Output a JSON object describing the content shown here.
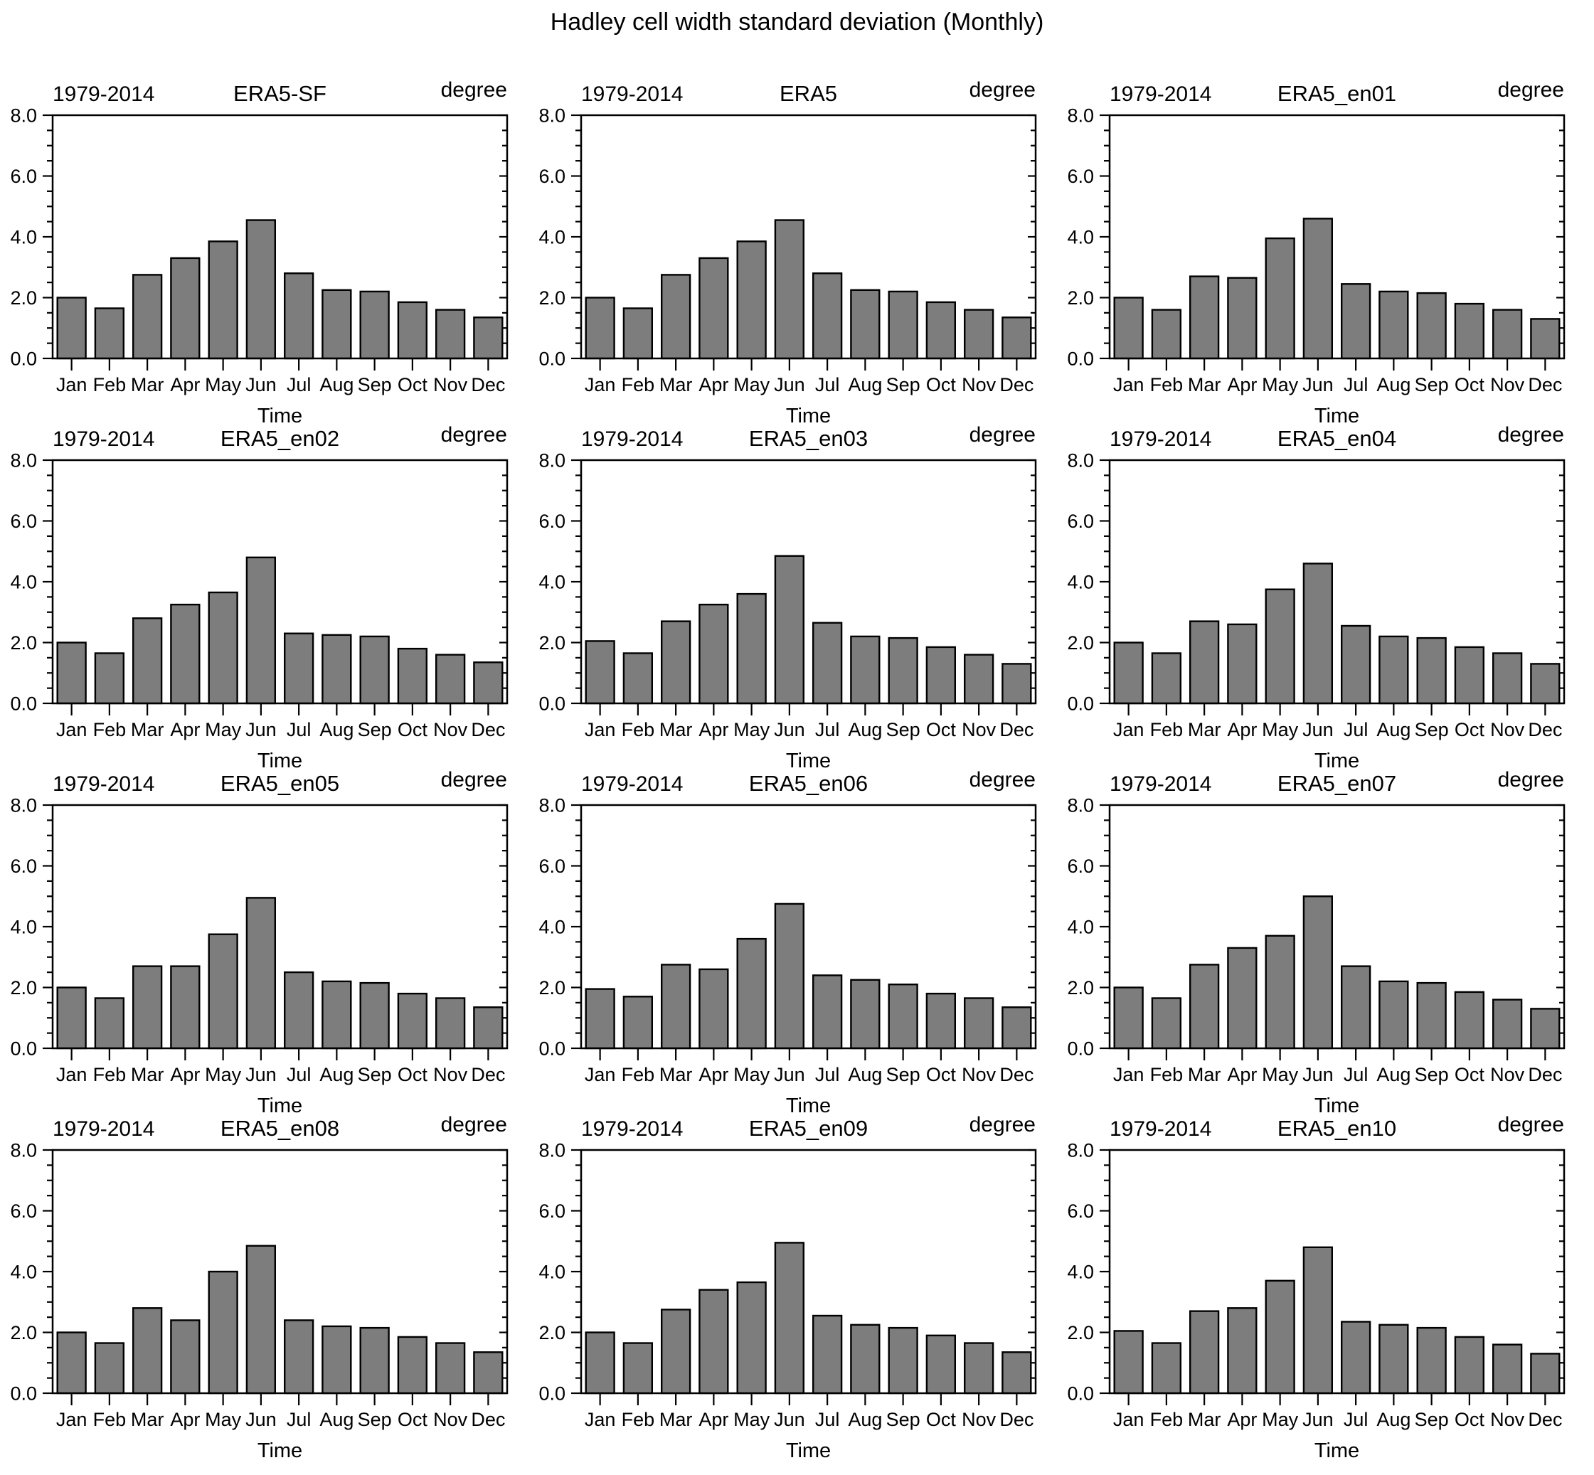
{
  "page_title": "Hadley cell width standard deviation (Monthly)",
  "chart_data": {
    "type": "bar",
    "period_label": "1979-2014",
    "unit_label": "degree",
    "xlabel": "Time",
    "categories": [
      "Jan",
      "Feb",
      "Mar",
      "Apr",
      "May",
      "Jun",
      "Jul",
      "Aug",
      "Sep",
      "Oct",
      "Nov",
      "Dec"
    ],
    "ylim": [
      0.0,
      8.0
    ],
    "ytick_labels": [
      "0.0",
      "2.0",
      "4.0",
      "6.0",
      "8.0"
    ],
    "ytick_values": [
      0,
      2,
      4,
      6,
      8
    ],
    "minor_tick_step": 0.5,
    "grid": "off",
    "legend": "none",
    "bar_color": "#7d7d7d",
    "bar_edge_color": "#000000",
    "axis_color": "#000000",
    "panels": [
      {
        "title": "ERA5-SF",
        "values": [
          2.0,
          1.65,
          2.75,
          3.3,
          3.85,
          4.55,
          2.8,
          2.25,
          2.2,
          1.85,
          1.6,
          1.35
        ]
      },
      {
        "title": "ERA5",
        "values": [
          2.0,
          1.65,
          2.75,
          3.3,
          3.85,
          4.55,
          2.8,
          2.25,
          2.2,
          1.85,
          1.6,
          1.35
        ]
      },
      {
        "title": "ERA5_en01",
        "values": [
          2.0,
          1.6,
          2.7,
          2.65,
          3.95,
          4.6,
          2.45,
          2.2,
          2.15,
          1.8,
          1.6,
          1.3
        ]
      },
      {
        "title": "ERA5_en02",
        "values": [
          2.0,
          1.65,
          2.8,
          3.25,
          3.65,
          4.8,
          2.3,
          2.25,
          2.2,
          1.8,
          1.6,
          1.35
        ]
      },
      {
        "title": "ERA5_en03",
        "values": [
          2.05,
          1.65,
          2.7,
          3.25,
          3.6,
          4.85,
          2.65,
          2.2,
          2.15,
          1.85,
          1.6,
          1.3
        ]
      },
      {
        "title": "ERA5_en04",
        "values": [
          2.0,
          1.65,
          2.7,
          2.6,
          3.75,
          4.6,
          2.55,
          2.2,
          2.15,
          1.85,
          1.65,
          1.3
        ]
      },
      {
        "title": "ERA5_en05",
        "values": [
          2.0,
          1.65,
          2.7,
          2.7,
          3.75,
          4.95,
          2.5,
          2.2,
          2.15,
          1.8,
          1.65,
          1.35
        ]
      },
      {
        "title": "ERA5_en06",
        "values": [
          1.95,
          1.7,
          2.75,
          2.6,
          3.6,
          4.75,
          2.4,
          2.25,
          2.1,
          1.8,
          1.65,
          1.35
        ]
      },
      {
        "title": "ERA5_en07",
        "values": [
          2.0,
          1.65,
          2.75,
          3.3,
          3.7,
          5.0,
          2.7,
          2.2,
          2.15,
          1.85,
          1.6,
          1.3
        ]
      },
      {
        "title": "ERA5_en08",
        "values": [
          2.0,
          1.65,
          2.8,
          2.4,
          4.0,
          4.85,
          2.4,
          2.2,
          2.15,
          1.85,
          1.65,
          1.35
        ]
      },
      {
        "title": "ERA5_en09",
        "values": [
          2.0,
          1.65,
          2.75,
          3.4,
          3.65,
          4.95,
          2.55,
          2.25,
          2.15,
          1.9,
          1.65,
          1.35
        ]
      },
      {
        "title": "ERA5_en10",
        "values": [
          2.05,
          1.65,
          2.7,
          2.8,
          3.7,
          4.8,
          2.35,
          2.25,
          2.15,
          1.85,
          1.6,
          1.3
        ]
      }
    ]
  }
}
